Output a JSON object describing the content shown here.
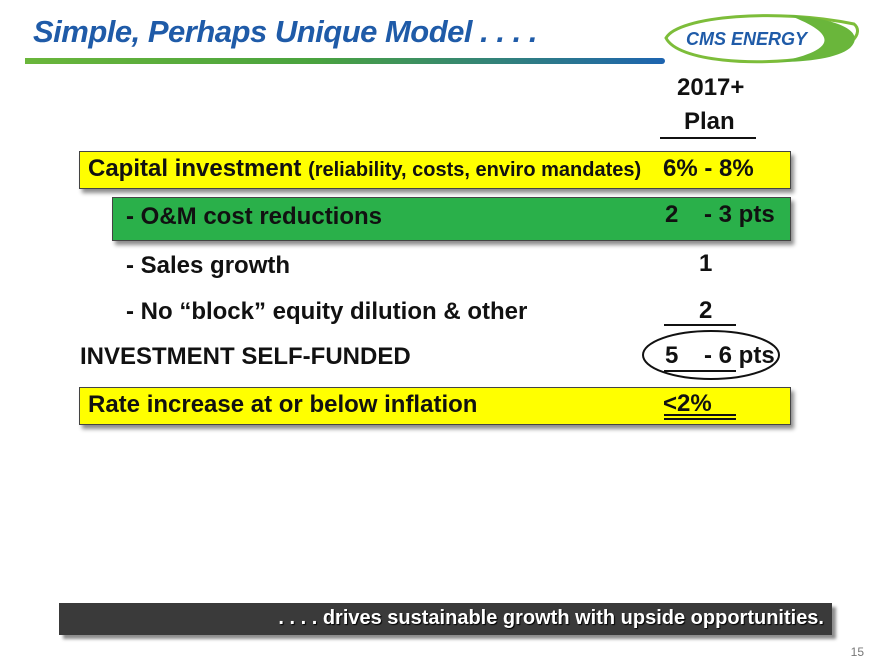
{
  "header": {
    "title": "Simple, Perhaps Unique Model . . . .",
    "logo_text": "CMS ENERGY"
  },
  "column_header": {
    "line1": "2017+",
    "line2": "Plan"
  },
  "rows": [
    {
      "label": "Capital investment",
      "note": "(reliability, costs, enviro mandates)",
      "value": "6% - 8%"
    },
    {
      "label": "- O&M cost reductions",
      "value_a": "2",
      "value_b": "- 3 pts"
    },
    {
      "label": "- Sales growth",
      "value": "1"
    },
    {
      "label": "- No “block” equity dilution & other",
      "value": "2"
    },
    {
      "label": "INVESTMENT SELF-FUNDED",
      "value_a": "5",
      "value_b": "- 6 pts"
    },
    {
      "label": "Rate increase at or below inflation",
      "value": "<2%"
    }
  ],
  "footer": {
    "tagline": ". . . . drives sustainable growth with upside opportunities.",
    "page_number": "15"
  },
  "colors": {
    "title_blue": "#1f5ba8",
    "highlight_yellow": "#ffff00",
    "highlight_green": "#2ab04a",
    "bar_dark": "#3a3a3a"
  }
}
